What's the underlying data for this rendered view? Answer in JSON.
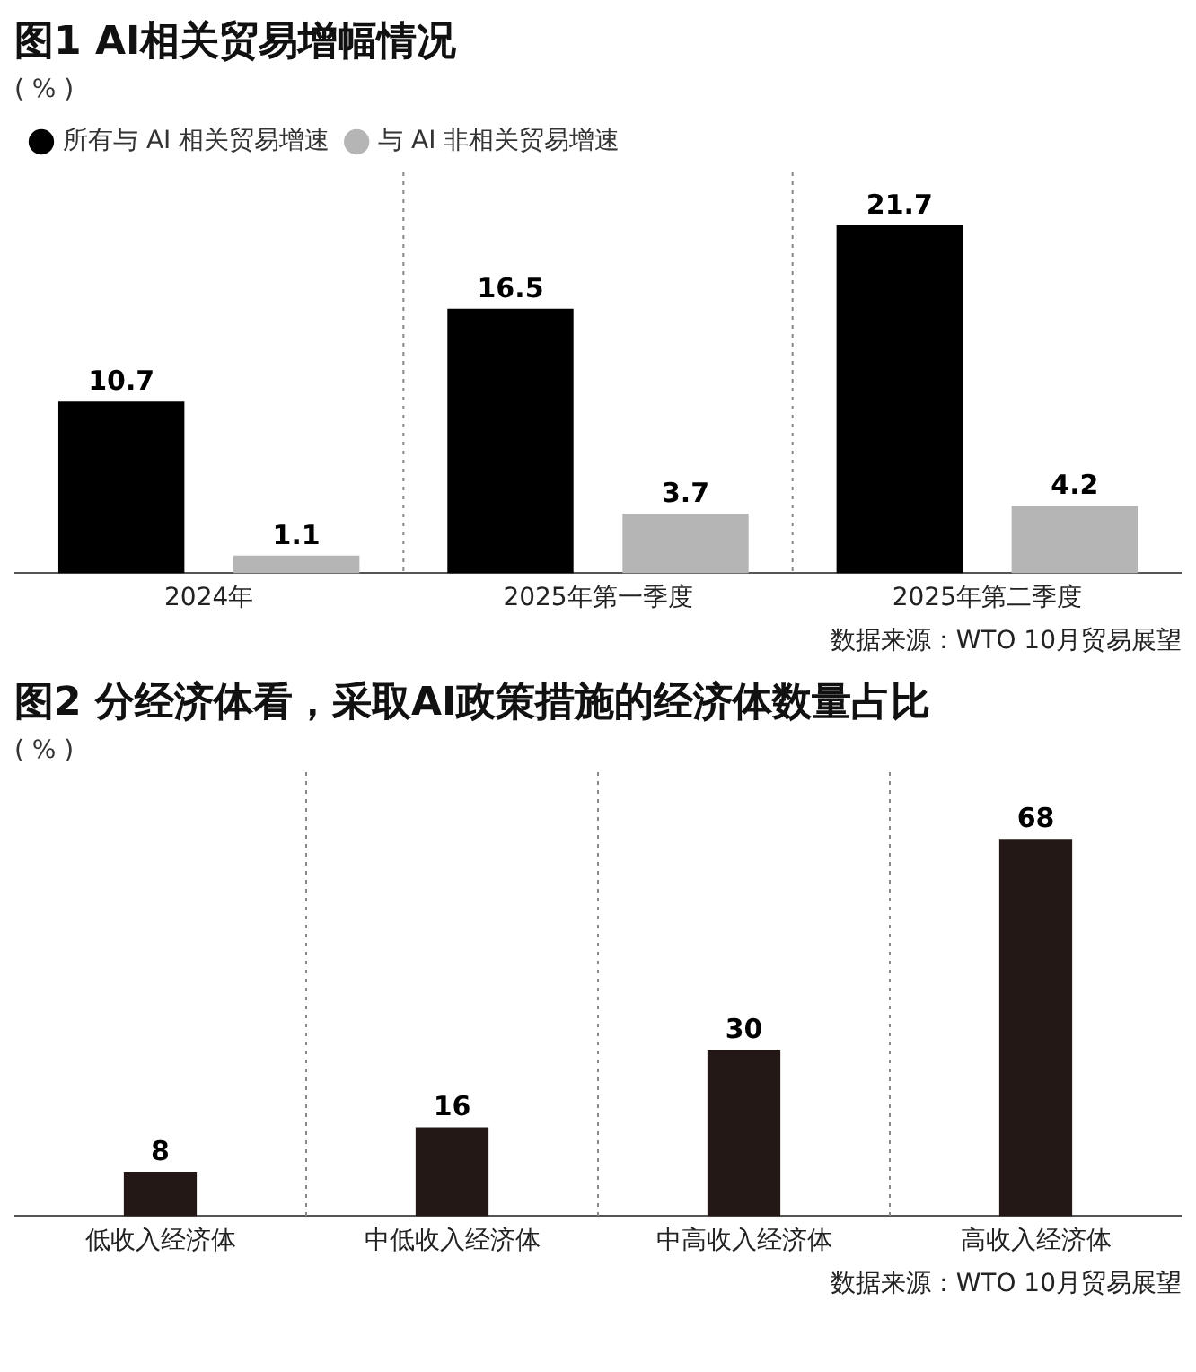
{
  "chart_data": [
    {
      "type": "bar",
      "title": "图1 AI相关贸易增幅情况",
      "ylabel": "( % )",
      "categories": [
        "2024年",
        "2025年第一季度",
        "2025年第二季度"
      ],
      "series": [
        {
          "name": "所有与 AI 相关贸易增速",
          "color": "#000000",
          "values": [
            10.7,
            16.5,
            21.7
          ]
        },
        {
          "name": "与 AI 非相关贸易增速",
          "color": "#b5b5b5",
          "values": [
            1.1,
            3.7,
            4.2
          ]
        }
      ],
      "data_labels": true,
      "grid": "x",
      "legend": "top left",
      "tick_labels": "x",
      "annotations": [
        "数据来源：WTO 10月贸易展望"
      ]
    },
    {
      "type": "bar",
      "title": "图2 分经济体看，采取AI政策措施的经济体数量占比",
      "ylabel": "( % )",
      "categories": [
        "低收入经济体",
        "中低收入经济体",
        "中高收入经济体",
        "高收入经济体"
      ],
      "series": [
        {
          "color": "#231815",
          "values": [
            8,
            16,
            30,
            68
          ]
        }
      ],
      "data_labels": true,
      "grid": "x",
      "legend": false,
      "tick_labels": "x",
      "annotations": [
        "数据来源：WTO 10月贸易展望"
      ]
    }
  ]
}
